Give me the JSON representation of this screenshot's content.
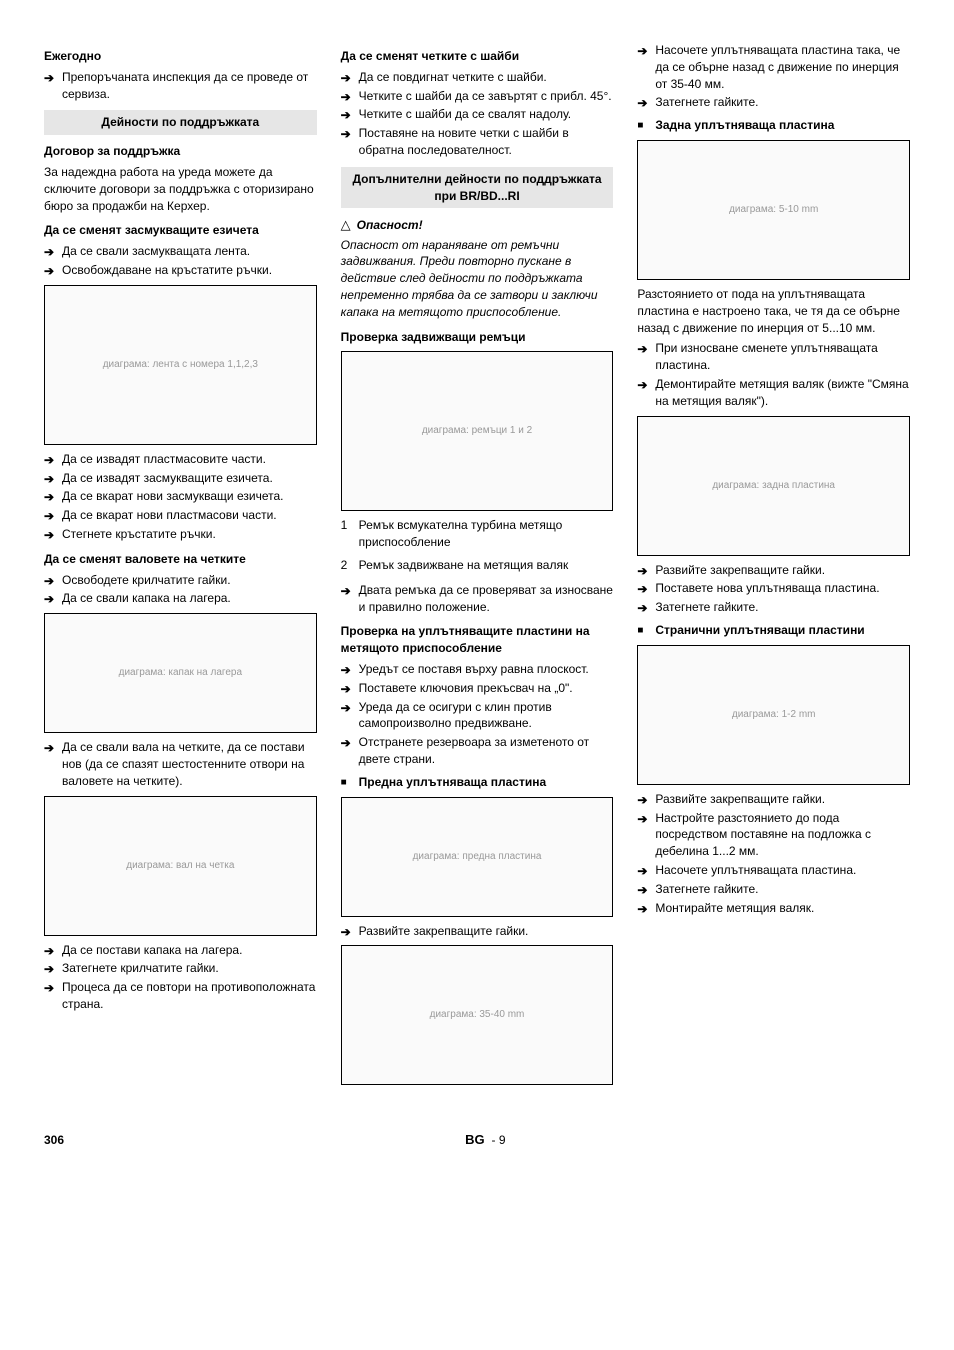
{
  "col1": {
    "h_annual": "Ежегодно",
    "annual_item": "Препоръчаната инспекция да се проведе от сервиза.",
    "h_maint": "Дейности по поддръжката",
    "h_contract": "Договор за поддръжка",
    "contract_body": "За надеждна работа на уреда можете да сключите договори за поддръжка с оторизирано бюро за продажби на Керхер.",
    "h_replace_lips": "Да се сменят засмукващите езичета",
    "lips_i1": "Да се свали засмукващата лента.",
    "lips_i2": "Освобождаване на кръстатите ръчки.",
    "fig1_alt": "диаграма: лента с номера 1,1,2,3",
    "lips_i3": "Да се извадят пластмасовите части.",
    "lips_i4": "Да се извадят засмукващите езичета.",
    "lips_i5": "Да се вкарат нови засмукващи езичета.",
    "lips_i6": "Да се вкарат нови пластмасови части.",
    "lips_i7": "Стегнете кръстатите ръчки.",
    "h_replace_rollers": "Да се сменят валовете на четките",
    "roll_i1": "Освободете крилчатите гайки.",
    "roll_i2": "Да се свали капака на лагера.",
    "fig2_alt": "диаграма: капак на лагера",
    "roll_i3": "Да се свали вала на четките, да се постави нов (да се спазят шестостенните отвори на валовете на четките).",
    "fig3_alt": "диаграма: вал на четка",
    "roll_i4": "Да се постави капака на лагера.",
    "roll_i5": "Затегнете крилчатите гайки.",
    "roll_i6": "Процеса да се повтори на противоположната страна."
  },
  "col2": {
    "h_disc": "Да се сменят четките с шайби",
    "disc_i1": "Да се повдигнат четките с шайби.",
    "disc_i2": "Четките с шайби да се завъртят с прибл. 45°.",
    "disc_i3": "Четките с шайби да се свалят надолу.",
    "disc_i4": "Поставяне на новите четки с шайби в обратна последователност.",
    "h_additional": "Допълнителни дейности по поддръжката при BR/BD...RI",
    "danger_label": "Опасност!",
    "danger_body": "Опасност от нараняване от ремъчни задвижвания. Преди повторно пускане в действие след дейности по поддръжката непременно трябва да се затвори и заключи капака на метящото приспособление.",
    "h_check_belts": "Проверка задвижващи ремъци",
    "fig4_alt": "диаграма: ремъци 1 и 2",
    "belt_n1": "Ремък всмукателна турбина метящо приспособление",
    "belt_n2": "Ремък задвижване на метящия валяк",
    "belt_check": "Двата ремъка да се проверяват за износване и правилно положение.",
    "h_check_seals": "Проверка на уплътняващите пластини на метящото приспособление",
    "seal_i1": "Уредът се поставя върху равна плоскост.",
    "seal_i2": "Поставете ключовия прекъсвач на „0\".",
    "seal_i3": "Уреда да се осигури с клин против самопроизволно предвижване.",
    "seal_i4": "Отстранете резервоара за изметеното от двете страни.",
    "h_front_plate": "Предна уплътняваща пластина",
    "fig5_alt": "диаграма: предна пластина",
    "front_i1": "Развийте закрепващите гайки.",
    "fig6_alt": "диаграма: 35-40 mm"
  },
  "col3": {
    "top_i1": "Насочете уплътняващата пластина така, че да се обърне назад с движение по инерция от 35-40 мм.",
    "top_i2": "Затегнете гайките.",
    "h_rear_plate": "Задна уплътняваща пластина",
    "fig7_alt": "диаграма: 5-10 mm",
    "rear_body": "Разстоянието от пода на уплътняващата пластина е настроено така, че тя да се обърне назад с движение по инерция от 5...10 мм.",
    "rear_i1": "При износване сменете уплътняващата пластина.",
    "rear_i2": "Демонтирайте метящия валяк (вижте \"Смяна на метящия валяк\").",
    "fig8_alt": "диаграма: задна пластина",
    "rear_i3": "Развийте закрепващите гайки.",
    "rear_i4": "Поставете нова уплътняваща пластина.",
    "rear_i5": "Затегнете гайките.",
    "h_side_plates": "Странични уплътняващи пластини",
    "fig9_alt": "диаграма: 1-2 mm",
    "side_i1": "Развийте закрепващите гайки.",
    "side_i2": "Настройте разстоянието до пода посредством поставяне на подложка с дебелина 1...2 мм.",
    "side_i3": "Насочете уплътняващата пластина.",
    "side_i4": "Затегнете гайките.",
    "side_i5": "Монтирайте метящия валяк."
  },
  "footer": {
    "page": "306",
    "lang": "BG",
    "seq": "9"
  }
}
